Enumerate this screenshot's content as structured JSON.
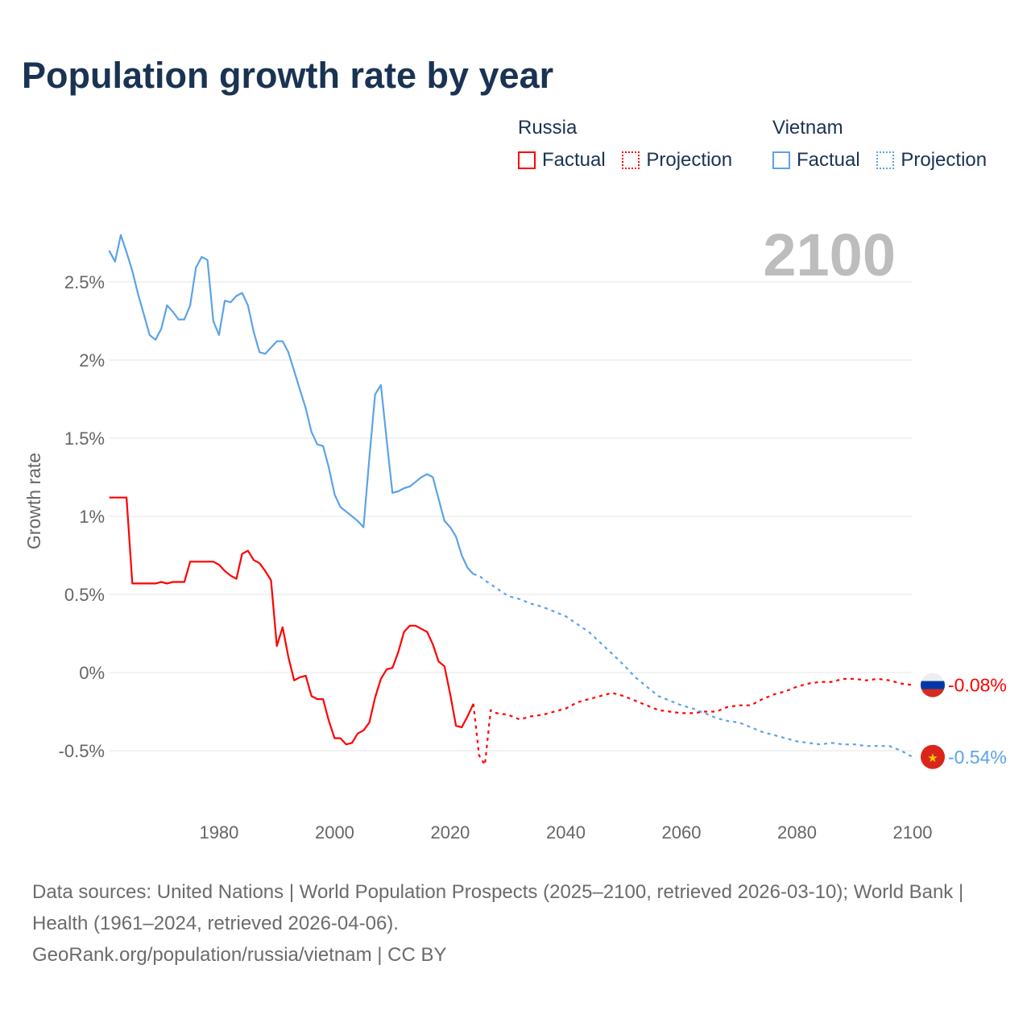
{
  "title": "Population growth rate by year",
  "legend": {
    "groups": [
      {
        "name": "Russia",
        "color": "#ff0000",
        "factual": "Factual",
        "projection": "Projection"
      },
      {
        "name": "Vietnam",
        "color": "#5ba3e8",
        "factual": "Factual",
        "projection": "Projection"
      }
    ]
  },
  "year_label": "2100",
  "footer": {
    "sources": "Data sources: United Nations | World Population Prospects (2025–2100, retrieved 2026-03-10); World Bank | Health (1961–2024, retrieved 2026-04-06).",
    "credit": "GeoRank.org/population/russia/vietnam | CC BY"
  },
  "chart_data": {
    "type": "line",
    "title": "Population growth rate by year",
    "xlabel": "",
    "ylabel": "Growth rate",
    "xlim": [
      1961,
      2100
    ],
    "ylim": [
      -0.75,
      2.85
    ],
    "x_ticks": [
      1980,
      2000,
      2020,
      2040,
      2060,
      2080,
      2100
    ],
    "y_ticks": [
      -0.5,
      0,
      0.5,
      1,
      1.5,
      2,
      2.5
    ],
    "y_tick_labels": [
      "-0.5%",
      "0%",
      "0.5%",
      "1%",
      "1.5%",
      "2%",
      "2.5%"
    ],
    "grid": true,
    "legend_position": "top-right",
    "end_labels": {
      "Russia": "-0.08%",
      "Vietnam": "-0.54%"
    },
    "series": [
      {
        "name": "Russia",
        "color": "#ff0000",
        "factual": {
          "x": [
            1961,
            1962,
            1963,
            1964,
            1965,
            1966,
            1967,
            1968,
            1969,
            1970,
            1971,
            1972,
            1973,
            1974,
            1975,
            1976,
            1977,
            1978,
            1979,
            1980,
            1981,
            1982,
            1983,
            1984,
            1985,
            1986,
            1987,
            1988,
            1989,
            1990,
            1991,
            1992,
            1993,
            1994,
            1995,
            1996,
            1997,
            1998,
            1999,
            2000,
            2001,
            2002,
            2003,
            2004,
            2005,
            2006,
            2007,
            2008,
            2009,
            2010,
            2011,
            2012,
            2013,
            2014,
            2015,
            2016,
            2017,
            2018,
            2019,
            2020,
            2021,
            2022,
            2023,
            2024
          ],
          "y": [
            1.12,
            1.12,
            1.12,
            1.12,
            0.57,
            0.57,
            0.57,
            0.57,
            0.57,
            0.58,
            0.57,
            0.58,
            0.58,
            0.58,
            0.71,
            0.71,
            0.71,
            0.71,
            0.71,
            0.69,
            0.65,
            0.62,
            0.6,
            0.76,
            0.78,
            0.72,
            0.7,
            0.65,
            0.59,
            0.17,
            0.29,
            0.1,
            -0.05,
            -0.03,
            -0.02,
            -0.15,
            -0.17,
            -0.17,
            -0.31,
            -0.42,
            -0.42,
            -0.46,
            -0.45,
            -0.39,
            -0.37,
            -0.32,
            -0.16,
            -0.04,
            0.02,
            0.03,
            0.13,
            0.26,
            0.3,
            0.3,
            0.28,
            0.26,
            0.18,
            0.07,
            0.04,
            -0.14,
            -0.34,
            -0.35,
            -0.28,
            -0.2
          ]
        },
        "projection": {
          "x": [
            2024,
            2025,
            2026,
            2027,
            2028,
            2030,
            2032,
            2034,
            2036,
            2038,
            2040,
            2042,
            2044,
            2046,
            2048,
            2050,
            2052,
            2054,
            2056,
            2058,
            2060,
            2062,
            2064,
            2066,
            2068,
            2070,
            2072,
            2074,
            2076,
            2078,
            2080,
            2082,
            2084,
            2086,
            2088,
            2090,
            2092,
            2094,
            2096,
            2098,
            2100
          ],
          "y": [
            -0.2,
            -0.53,
            -0.59,
            -0.24,
            -0.26,
            -0.27,
            -0.3,
            -0.28,
            -0.27,
            -0.25,
            -0.23,
            -0.19,
            -0.17,
            -0.15,
            -0.13,
            -0.15,
            -0.18,
            -0.21,
            -0.24,
            -0.25,
            -0.26,
            -0.26,
            -0.25,
            -0.25,
            -0.22,
            -0.21,
            -0.21,
            -0.17,
            -0.14,
            -0.12,
            -0.09,
            -0.07,
            -0.06,
            -0.06,
            -0.04,
            -0.04,
            -0.05,
            -0.04,
            -0.05,
            -0.07,
            -0.08
          ]
        }
      },
      {
        "name": "Vietnam",
        "color": "#5ba3e8",
        "factual": {
          "x": [
            1961,
            1962,
            1963,
            1964,
            1965,
            1966,
            1967,
            1968,
            1969,
            1970,
            1971,
            1972,
            1973,
            1974,
            1975,
            1976,
            1977,
            1978,
            1979,
            1980,
            1981,
            1982,
            1983,
            1984,
            1985,
            1986,
            1987,
            1988,
            1989,
            1990,
            1991,
            1992,
            1993,
            1994,
            1995,
            1996,
            1997,
            1998,
            1999,
            2000,
            2001,
            2002,
            2003,
            2004,
            2005,
            2006,
            2007,
            2008,
            2009,
            2010,
            2011,
            2012,
            2013,
            2014,
            2015,
            2016,
            2017,
            2018,
            2019,
            2020,
            2021,
            2022,
            2023,
            2024
          ],
          "y": [
            2.7,
            2.63,
            2.8,
            2.69,
            2.57,
            2.42,
            2.29,
            2.16,
            2.13,
            2.2,
            2.35,
            2.31,
            2.26,
            2.26,
            2.35,
            2.59,
            2.66,
            2.64,
            2.25,
            2.16,
            2.38,
            2.37,
            2.41,
            2.43,
            2.35,
            2.18,
            2.05,
            2.04,
            2.08,
            2.12,
            2.12,
            2.05,
            1.93,
            1.81,
            1.69,
            1.54,
            1.46,
            1.45,
            1.31,
            1.14,
            1.06,
            1.03,
            1.0,
            0.97,
            0.93,
            1.37,
            1.78,
            1.84,
            1.49,
            1.15,
            1.16,
            1.18,
            1.19,
            1.22,
            1.25,
            1.27,
            1.25,
            1.11,
            0.97,
            0.93,
            0.87,
            0.75,
            0.67,
            0.63
          ]
        },
        "projection": {
          "x": [
            2024,
            2025,
            2026,
            2028,
            2030,
            2032,
            2034,
            2036,
            2038,
            2040,
            2042,
            2044,
            2046,
            2048,
            2050,
            2052,
            2054,
            2056,
            2058,
            2060,
            2062,
            2064,
            2066,
            2068,
            2070,
            2072,
            2074,
            2076,
            2078,
            2080,
            2082,
            2084,
            2086,
            2088,
            2090,
            2092,
            2094,
            2096,
            2098,
            2100
          ],
          "y": [
            0.63,
            0.62,
            0.59,
            0.54,
            0.49,
            0.47,
            0.44,
            0.42,
            0.39,
            0.36,
            0.31,
            0.26,
            0.19,
            0.12,
            0.05,
            -0.03,
            -0.09,
            -0.15,
            -0.18,
            -0.21,
            -0.23,
            -0.26,
            -0.29,
            -0.31,
            -0.32,
            -0.35,
            -0.38,
            -0.4,
            -0.42,
            -0.44,
            -0.45,
            -0.46,
            -0.45,
            -0.46,
            -0.46,
            -0.47,
            -0.47,
            -0.47,
            -0.5,
            -0.54
          ]
        }
      }
    ]
  }
}
